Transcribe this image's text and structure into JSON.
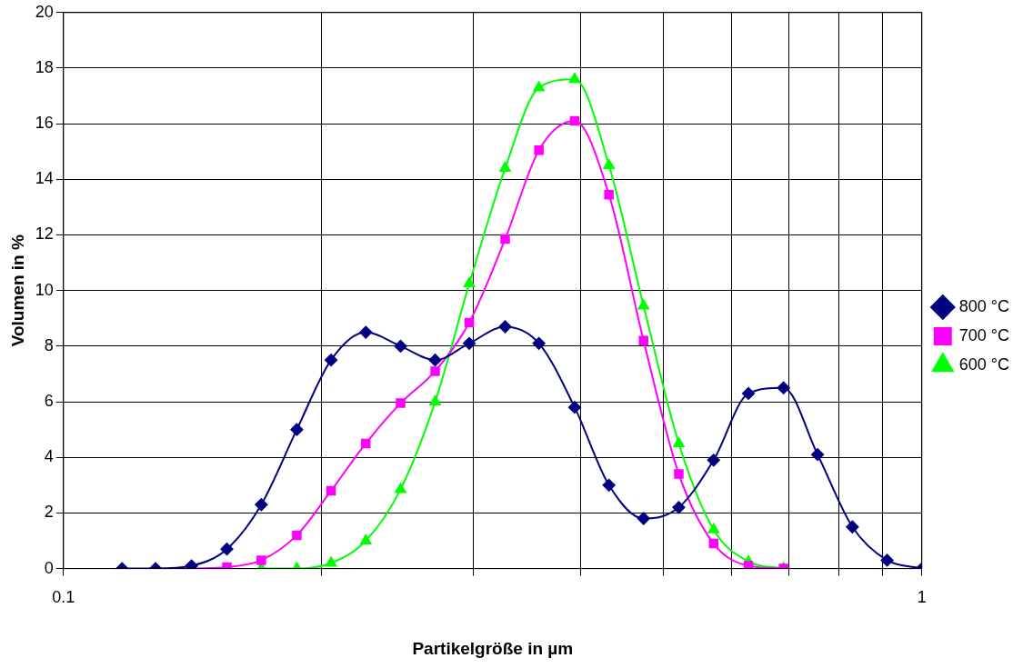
{
  "chart_data": {
    "type": "line",
    "xlabel": "Partikelgröße in µm",
    "ylabel": "Volumen in %",
    "log": "x",
    "xlim": [
      0.1,
      1
    ],
    "xticks": [
      0.1,
      {
        "value": 0.2,
        "label": null
      },
      {
        "value": 0.3,
        "label": null
      },
      {
        "value": 0.4,
        "label": null
      },
      {
        "value": 0.5,
        "label": null
      },
      {
        "value": 0.6,
        "label": null
      },
      {
        "value": 0.7,
        "label": null
      },
      {
        "value": 0.8,
        "label": null
      },
      {
        "value": 0.9,
        "label": null
      },
      1
    ],
    "ylim": [
      0,
      20
    ],
    "yticks": [
      0,
      2,
      4,
      6,
      8,
      10,
      12,
      14,
      16,
      18,
      20
    ],
    "grid": true,
    "legend": "right",
    "series": [
      {
        "name": "800 °C",
        "color": "#000080",
        "marker": "diamond",
        "x": [
          0.117,
          0.128,
          0.141,
          0.155,
          0.17,
          0.187,
          0.205,
          0.225,
          0.247,
          0.271,
          0.297,
          0.327,
          0.358,
          0.394,
          0.432,
          0.474,
          0.521,
          0.572,
          0.628,
          0.69,
          0.756,
          0.83,
          0.911,
          1.0
        ],
        "values": [
          0,
          0,
          0.1,
          0.7,
          2.3,
          5.0,
          7.5,
          8.5,
          8.0,
          7.5,
          8.1,
          8.7,
          8.1,
          5.8,
          3.0,
          1.8,
          2.2,
          3.9,
          6.3,
          6.5,
          4.1,
          1.5,
          0.3,
          0
        ]
      },
      {
        "name": "700 °C",
        "color": "#ff00ff",
        "marker": "square",
        "x": [
          0.141,
          0.155,
          0.17,
          0.187,
          0.205,
          0.225,
          0.247,
          0.271,
          0.297,
          0.327,
          0.358,
          0.394,
          0.432,
          0.474,
          0.521,
          0.572,
          0.628,
          0.69
        ],
        "values": [
          0,
          0.05,
          0.3,
          1.2,
          2.8,
          4.5,
          5.95,
          7.1,
          8.85,
          11.85,
          15.05,
          16.1,
          13.45,
          8.2,
          3.4,
          0.9,
          0.1,
          0
        ]
      },
      {
        "name": "600 °C",
        "color": "#00ff00",
        "marker": "triangle",
        "x": [
          0.17,
          0.187,
          0.205,
          0.225,
          0.247,
          0.271,
          0.297,
          0.327,
          0.358,
          0.394,
          0.432,
          0.474,
          0.521,
          0.572,
          0.628,
          0.69
        ],
        "values": [
          0,
          0,
          0.2,
          1.0,
          2.85,
          6.0,
          10.25,
          14.4,
          17.3,
          17.6,
          14.5,
          9.45,
          4.5,
          1.4,
          0.25,
          0
        ]
      }
    ]
  }
}
